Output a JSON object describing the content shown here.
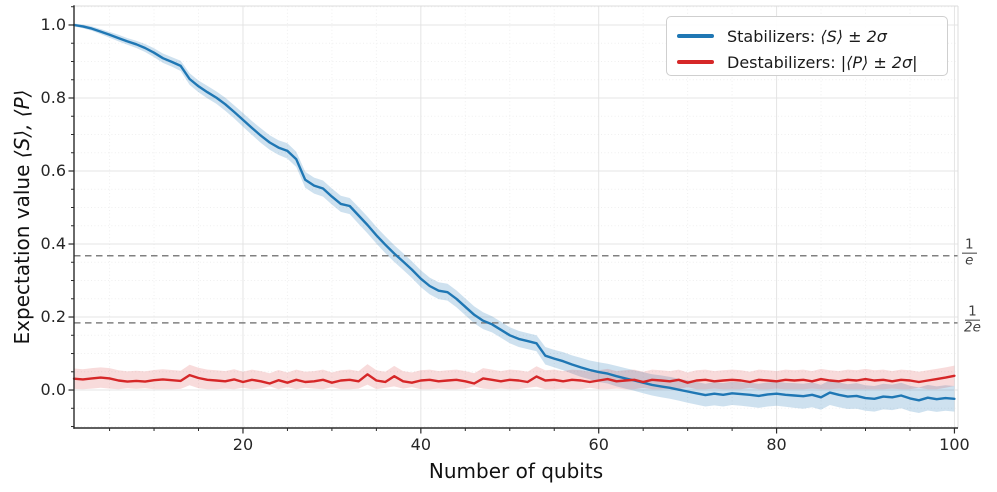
{
  "chart_data": {
    "type": "line",
    "xlabel": "Number of qubits",
    "ylabel_prefix": "Expectation value ",
    "ylabel_math": "⟨S⟩, ⟨P⟩",
    "x_ticks": [
      20,
      40,
      60,
      80,
      100
    ],
    "x_tick_labels": [
      "20",
      "40",
      "60",
      "80",
      "100"
    ],
    "y_ticks": [
      0.0,
      0.2,
      0.4,
      0.6,
      0.8,
      1.0
    ],
    "y_tick_labels": [
      "0.0",
      "0.2",
      "0.4",
      "0.6",
      "0.8",
      "1.0"
    ],
    "x_minor_step": 5,
    "y_minor_step": 0.05,
    "xlim": [
      1,
      100.4
    ],
    "ylim": [
      -0.104,
      1.052
    ],
    "grid": "major-solid, minor-dotted",
    "legend": {
      "position": "upper right",
      "items": [
        {
          "prefix": "Stabilizers: ",
          "math": "⟨S⟩ ± 2σ",
          "color": "#1f77b4"
        },
        {
          "prefix": "Destabilizers: ",
          "math": "|⟨P⟩ ± 2σ|",
          "color": "#d62728"
        }
      ]
    },
    "reference_lines": [
      {
        "value": 0.3679,
        "numerator": "1",
        "denominator": "e",
        "style": "dashed",
        "color": "#808080"
      },
      {
        "value": 0.1839,
        "numerator": "1",
        "denominator": "2e",
        "style": "dashed",
        "color": "#808080"
      }
    ],
    "x": [
      1,
      2,
      3,
      4,
      5,
      6,
      7,
      8,
      9,
      10,
      11,
      12,
      13,
      14,
      15,
      16,
      17,
      18,
      19,
      20,
      21,
      22,
      23,
      24,
      25,
      26,
      27,
      28,
      29,
      30,
      31,
      32,
      33,
      34,
      35,
      36,
      37,
      38,
      39,
      40,
      41,
      42,
      43,
      44,
      45,
      46,
      47,
      48,
      49,
      50,
      51,
      52,
      53,
      54,
      55,
      56,
      57,
      58,
      59,
      60,
      61,
      62,
      63,
      64,
      65,
      66,
      67,
      68,
      69,
      70,
      71,
      72,
      73,
      74,
      75,
      76,
      77,
      78,
      79,
      80,
      81,
      82,
      83,
      84,
      85,
      86,
      87,
      88,
      89,
      90,
      91,
      92,
      93,
      94,
      95,
      96,
      97,
      98,
      99,
      100
    ],
    "series": [
      {
        "name": "Stabilizers",
        "color": "#1f77b4",
        "band_fill": "rgba(31,119,180,0.22)",
        "values": [
          1.0,
          0.996,
          0.99,
          0.982,
          0.973,
          0.964,
          0.955,
          0.947,
          0.937,
          0.924,
          0.909,
          0.899,
          0.888,
          0.852,
          0.832,
          0.816,
          0.801,
          0.783,
          0.762,
          0.74,
          0.718,
          0.697,
          0.678,
          0.664,
          0.655,
          0.632,
          0.576,
          0.56,
          0.552,
          0.53,
          0.51,
          0.504,
          0.478,
          0.452,
          0.424,
          0.398,
          0.374,
          0.352,
          0.33,
          0.305,
          0.285,
          0.272,
          0.268,
          0.25,
          0.228,
          0.206,
          0.19,
          0.18,
          0.165,
          0.15,
          0.14,
          0.134,
          0.128,
          0.094,
          0.086,
          0.079,
          0.07,
          0.062,
          0.055,
          0.049,
          0.045,
          0.038,
          0.032,
          0.026,
          0.02,
          0.014,
          0.01,
          0.006,
          0.001,
          -0.004,
          -0.009,
          -0.014,
          -0.01,
          -0.013,
          -0.009,
          -0.011,
          -0.013,
          -0.016,
          -0.012,
          -0.01,
          -0.013,
          -0.015,
          -0.017,
          -0.013,
          -0.02,
          -0.007,
          -0.013,
          -0.018,
          -0.016,
          -0.022,
          -0.024,
          -0.018,
          -0.02,
          -0.015,
          -0.023,
          -0.028,
          -0.021,
          -0.025,
          -0.022,
          -0.024
        ],
        "band_2sigma": [
          0.004,
          0.005,
          0.006,
          0.007,
          0.008,
          0.009,
          0.009,
          0.01,
          0.011,
          0.012,
          0.013,
          0.013,
          0.014,
          0.016,
          0.016,
          0.017,
          0.017,
          0.018,
          0.018,
          0.019,
          0.019,
          0.02,
          0.02,
          0.02,
          0.021,
          0.021,
          0.022,
          0.022,
          0.022,
          0.022,
          0.022,
          0.022,
          0.023,
          0.023,
          0.023,
          0.023,
          0.023,
          0.023,
          0.023,
          0.023,
          0.023,
          0.023,
          0.023,
          0.023,
          0.023,
          0.023,
          0.023,
          0.022,
          0.022,
          0.022,
          0.022,
          0.022,
          0.022,
          0.024,
          0.024,
          0.025,
          0.025,
          0.026,
          0.026,
          0.027,
          0.027,
          0.028,
          0.028,
          0.028,
          0.029,
          0.029,
          0.03,
          0.03,
          0.03,
          0.031,
          0.031,
          0.031,
          0.032,
          0.032,
          0.032,
          0.032,
          0.033,
          0.033,
          0.033,
          0.033,
          0.033,
          0.034,
          0.034,
          0.034,
          0.034,
          0.034,
          0.034,
          0.034,
          0.035,
          0.035,
          0.035,
          0.035,
          0.035,
          0.035,
          0.035,
          0.035,
          0.035,
          0.035,
          0.035,
          0.035
        ]
      },
      {
        "name": "Destabilizers",
        "color": "#d62728",
        "band_fill": "rgba(214,39,40,0.17)",
        "abs_folded": true,
        "values": [
          0.031,
          0.029,
          0.032,
          0.034,
          0.032,
          0.026,
          0.023,
          0.025,
          0.023,
          0.027,
          0.029,
          0.027,
          0.025,
          0.041,
          0.033,
          0.028,
          0.026,
          0.024,
          0.029,
          0.022,
          0.028,
          0.024,
          0.018,
          0.027,
          0.02,
          0.028,
          0.022,
          0.024,
          0.028,
          0.02,
          0.026,
          0.028,
          0.024,
          0.043,
          0.026,
          0.022,
          0.038,
          0.024,
          0.02,
          0.026,
          0.028,
          0.024,
          0.026,
          0.028,
          0.024,
          0.018,
          0.032,
          0.028,
          0.024,
          0.028,
          0.026,
          0.022,
          0.037,
          0.026,
          0.028,
          0.024,
          0.028,
          0.026,
          0.022,
          0.026,
          0.03,
          0.024,
          0.026,
          0.028,
          0.022,
          0.028,
          0.026,
          0.024,
          0.028,
          0.02,
          0.026,
          0.028,
          0.024,
          0.026,
          0.028,
          0.026,
          0.022,
          0.028,
          0.026,
          0.024,
          0.028,
          0.026,
          0.028,
          0.024,
          0.03,
          0.026,
          0.024,
          0.028,
          0.026,
          0.03,
          0.026,
          0.028,
          0.024,
          0.028,
          0.026,
          0.022,
          0.026,
          0.03,
          0.034,
          0.039
        ],
        "band_2sigma": 0.028
      }
    ],
    "colors": {
      "spine_dark": "#2a2a2a",
      "spine_light": "#dcdcdc",
      "grid_major": "#e4e4e4",
      "grid_minor": "#efefef",
      "text": "#262626"
    }
  }
}
